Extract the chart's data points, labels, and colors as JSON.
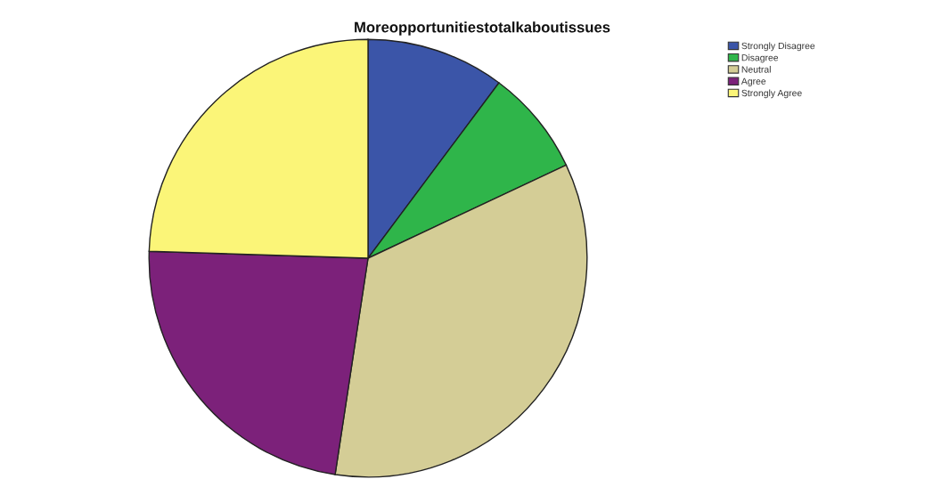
{
  "chart_data": {
    "type": "pie",
    "title": "Moreopportunitiestotalkaboutissues",
    "categories": [
      "Strongly Disagree",
      "Disagree",
      "Neutral",
      "Agree",
      "Strongly Agree"
    ],
    "values": [
      10.2,
      7.8,
      34.4,
      23.1,
      24.5
    ],
    "colors": [
      "#3b55a8",
      "#2fb54a",
      "#d4cd96",
      "#7c217a",
      "#fbf578"
    ],
    "legend": "top right"
  }
}
